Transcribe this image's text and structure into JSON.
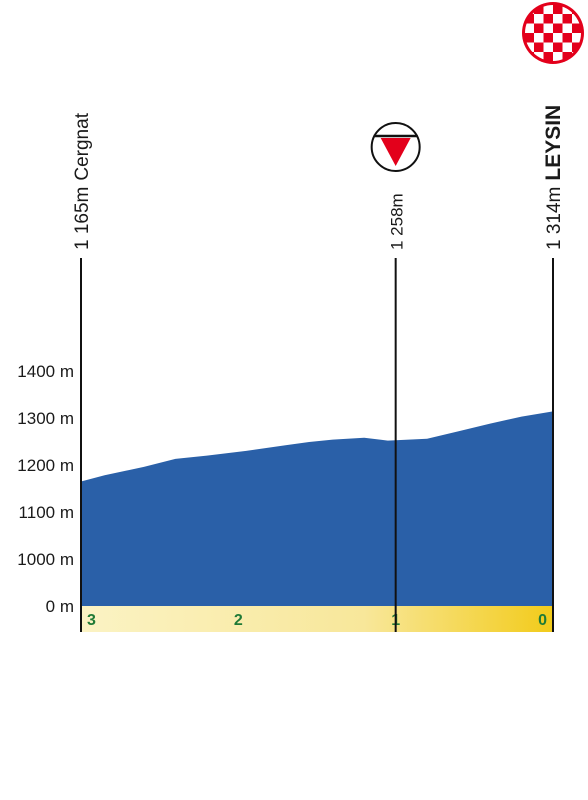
{
  "chart_data": {
    "type": "area",
    "title": "",
    "xlabel": "",
    "ylabel": "",
    "x_unit": "km to go",
    "xlim": [
      3,
      0
    ],
    "y_ticks": [
      {
        "value": 0,
        "label": "0 m"
      },
      {
        "value": 1000,
        "label": "1000 m"
      },
      {
        "value": 1100,
        "label": "1100 m"
      },
      {
        "value": 1200,
        "label": "1200 m"
      },
      {
        "value": 1300,
        "label": "1300 m"
      },
      {
        "value": 1400,
        "label": "1400 m"
      }
    ],
    "km_ticks": [
      {
        "value": 3,
        "label": "3"
      },
      {
        "value": 2,
        "label": "2"
      },
      {
        "value": 1,
        "label": "1"
      },
      {
        "value": 0,
        "label": "0"
      }
    ],
    "series": [
      {
        "x": [
          3.0,
          2.85,
          2.6,
          2.4,
          2.2,
          1.95,
          1.7,
          1.55,
          1.4,
          1.2,
          1.05,
          0.8,
          0.6,
          0.4,
          0.2,
          0.0
        ],
        "y": [
          1165,
          1178,
          1196,
          1213,
          1220,
          1230,
          1242,
          1249,
          1254,
          1258,
          1252,
          1256,
          1272,
          1288,
          1303,
          1314
        ]
      }
    ],
    "markers": [
      {
        "name": "start",
        "x": 3.0,
        "elevation_label": "1 165m",
        "place": "Cergnat"
      },
      {
        "name": "sprint",
        "x": 1.0,
        "elevation_label": "1 258m"
      },
      {
        "name": "finish",
        "x": 0.0,
        "elevation_label": "1 314m",
        "place": "LEYSIN"
      }
    ],
    "colors": {
      "profile_fill": "#2a60a8",
      "profile_edge": "#1f4f92",
      "band_light": "#fbf3c4",
      "band_dark": "#f2cb1a",
      "km_label": "#1f7a36",
      "sprint_red": "#e3001b",
      "finish_red": "#e3001b",
      "line": "#111111"
    },
    "icons": {
      "sprint": "sprint-triangle-icon",
      "finish": "checkered-flag-icon"
    }
  }
}
